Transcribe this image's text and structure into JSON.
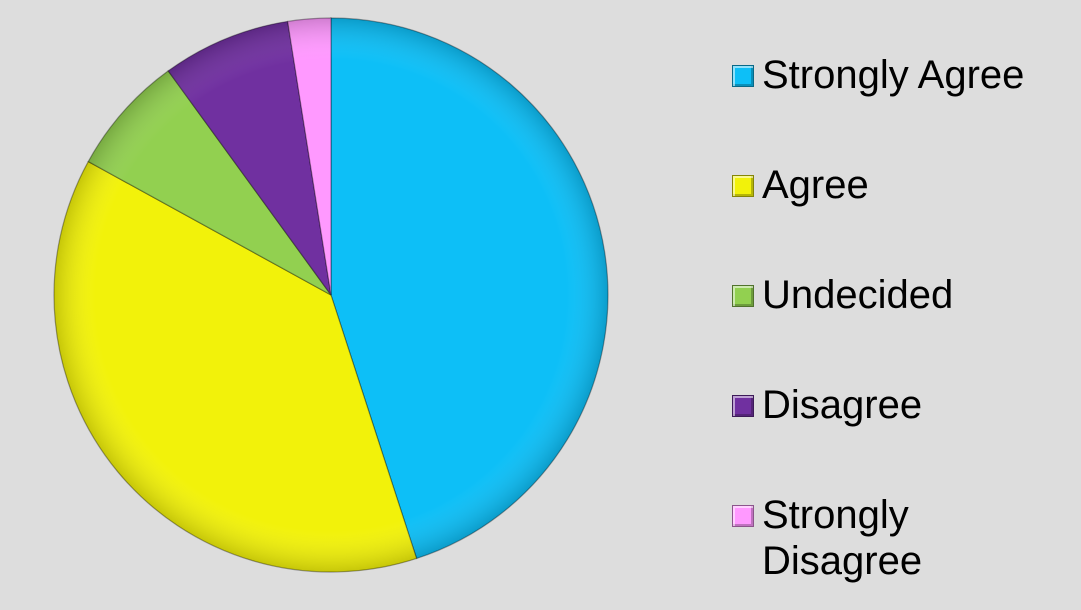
{
  "chart_data": {
    "type": "pie",
    "title": "",
    "categories": [
      "Strongly Agree",
      "Agree",
      "Undecided",
      "Disagree",
      "Strongly Disagree"
    ],
    "values": [
      45,
      38,
      7,
      7.5,
      2.5
    ],
    "colors": [
      "#0dbff7",
      "#f2f20a",
      "#92d050",
      "#7030a0",
      "#ff99ff"
    ],
    "legend_position": "right",
    "start_angle": "12 o'clock, clockwise",
    "legend": {
      "items": [
        {
          "label": "Strongly Agree",
          "color": "#0dbff7"
        },
        {
          "label": "Agree",
          "color": "#f2f20a"
        },
        {
          "label": "Undecided",
          "color": "#92d050"
        },
        {
          "label": "Disagree",
          "color": "#7030a0"
        },
        {
          "label": "Strongly Disagree",
          "color": "#ff99ff"
        }
      ]
    }
  }
}
